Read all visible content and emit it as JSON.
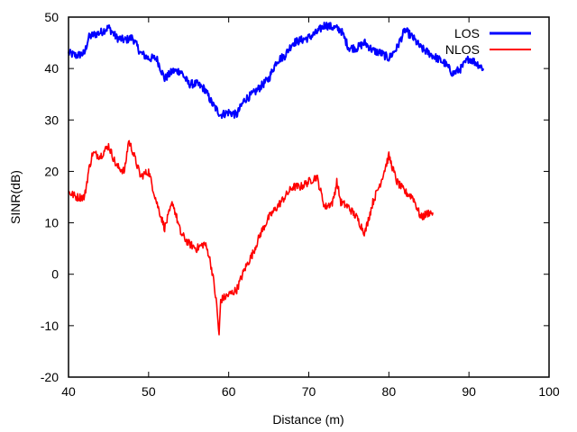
{
  "chart_data": {
    "type": "line",
    "xlabel": "Distance (m)",
    "ylabel": "SINR(dB)",
    "xlim": [
      40,
      100
    ],
    "ylim": [
      -20,
      50
    ],
    "x_ticks": [
      "40",
      "50",
      "60",
      "70",
      "80",
      "90",
      "100"
    ],
    "y_ticks": [
      "-20",
      "-10",
      "0",
      "10",
      "20",
      "30",
      "40",
      "50"
    ],
    "grid": false,
    "legend_position": "top-right",
    "series": [
      {
        "name": "LOS",
        "color": "#0000ff",
        "x": [
          40,
          41,
          42,
          42.5,
          43,
          44,
          45,
          46,
          47,
          48,
          49,
          50,
          51,
          52,
          53,
          54,
          55,
          56,
          57,
          58,
          59,
          60,
          61,
          62,
          63,
          64,
          65,
          66,
          67,
          68,
          69,
          70,
          71,
          72,
          73,
          74,
          75,
          76,
          77,
          78,
          79,
          80,
          81,
          82,
          83,
          84,
          85,
          86,
          87,
          88,
          89,
          90,
          91,
          91.8
        ],
        "y": [
          43,
          42.5,
          43,
          46,
          46.5,
          47,
          48,
          46,
          45.5,
          46,
          43,
          42,
          42,
          38,
          39.5,
          39.5,
          37,
          37,
          36,
          33,
          31,
          31.5,
          31,
          34,
          35,
          36.5,
          38,
          41.5,
          42.5,
          45,
          45.5,
          46,
          47,
          48.5,
          48,
          47.5,
          44,
          44,
          45,
          43.5,
          43,
          42,
          44,
          47.5,
          46,
          44,
          43,
          42,
          41,
          39,
          40,
          42,
          41,
          40
        ]
      },
      {
        "name": "NLOS",
        "color": "#ff0000",
        "x": [
          40,
          41,
          42,
          42.5,
          43,
          44,
          45,
          46,
          47,
          47.5,
          48,
          49,
          50,
          51,
          52,
          53,
          54,
          55,
          56,
          57,
          57.5,
          58,
          58.5,
          58.8,
          59,
          60,
          61,
          62,
          63,
          64,
          65,
          66,
          67,
          68,
          69,
          70,
          71,
          72,
          73,
          73.5,
          74,
          75,
          76,
          77,
          78,
          79,
          80,
          81,
          82,
          83,
          84,
          85,
          85.5
        ],
        "y": [
          16,
          15,
          15,
          20,
          23.5,
          23,
          25,
          21,
          20,
          26,
          24,
          19,
          20,
          14,
          9,
          14,
          8,
          6,
          5,
          6,
          4,
          0,
          -6,
          -12,
          -5,
          -4,
          -3,
          1,
          4,
          8,
          11,
          13,
          15,
          17,
          17,
          18,
          19,
          13,
          14,
          18,
          14,
          13,
          11,
          8,
          14,
          18,
          23,
          18,
          16,
          15,
          11,
          12,
          12
        ]
      }
    ]
  }
}
